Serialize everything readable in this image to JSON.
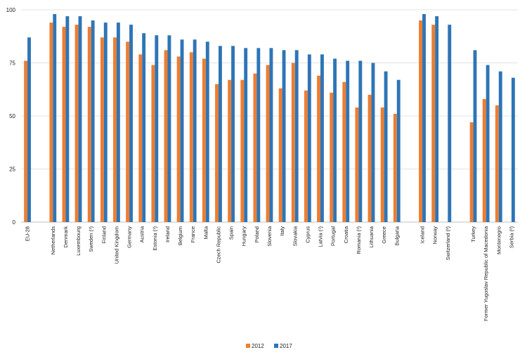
{
  "chart_data": {
    "type": "bar",
    "categories": [
      "EU-28",
      "Netherlands",
      "Denmark",
      "Luxembourg",
      "Sweden (¹)",
      "Finland",
      "United Kingdom",
      "Germany",
      "Austria",
      "Estonia (¹)",
      "Ireland",
      "Belgium",
      "France",
      "Malta",
      "Czech Republic",
      "Spain",
      "Hungary",
      "Poland",
      "Slovenia",
      "Italy",
      "Slovakia",
      "Cyprus",
      "Latvia (¹)",
      "Portugal",
      "Croatia",
      "Romania (¹)",
      "Lithuania",
      "Greece",
      "Bulgaria",
      "Iceland",
      "Norway",
      "Switzerland (²)",
      "Turkey",
      "Former Yugoslav Republic of Macedonia",
      "Montenegro",
      "Serbia (²)"
    ],
    "groups": [
      0,
      1,
      1,
      1,
      1,
      1,
      1,
      1,
      1,
      1,
      1,
      1,
      1,
      1,
      1,
      1,
      1,
      1,
      1,
      1,
      1,
      1,
      1,
      1,
      1,
      1,
      1,
      1,
      1,
      2,
      2,
      2,
      3,
      3,
      3,
      3
    ],
    "series": [
      {
        "name": "2012",
        "color": "#ed7d31",
        "values": [
          76,
          94,
          92,
          93,
          92,
          87,
          87,
          85,
          79,
          74,
          81,
          78,
          80,
          77,
          65,
          67,
          67,
          70,
          74,
          63,
          75,
          62,
          69,
          61,
          66,
          54,
          60,
          54,
          51,
          95,
          93,
          null,
          47,
          58,
          55,
          null
        ]
      },
      {
        "name": "2017",
        "color": "#2e75b6",
        "values": [
          87,
          98,
          97,
          97,
          95,
          94,
          94,
          93,
          89,
          88,
          88,
          86,
          86,
          85,
          83,
          83,
          82,
          82,
          82,
          81,
          81,
          79,
          79,
          77,
          76,
          76,
          75,
          71,
          67,
          98,
          97,
          93,
          81,
          74,
          71,
          68
        ]
      }
    ],
    "y_ticks": [
      "0",
      "25",
      "50",
      "75",
      "100"
    ],
    "ylim": [
      0,
      100
    ],
    "grid": true,
    "legend_position": "bottom-center"
  }
}
